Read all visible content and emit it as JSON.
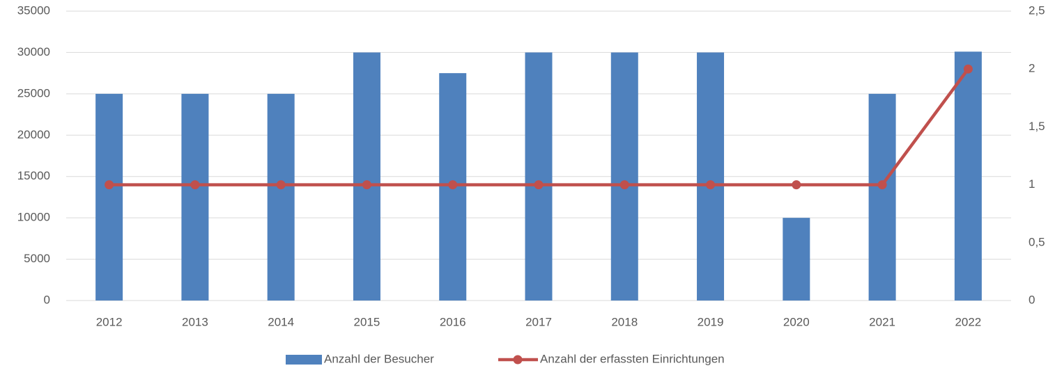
{
  "chart_data": {
    "type": "bar",
    "categories": [
      "2012",
      "2013",
      "2014",
      "2015",
      "2016",
      "2017",
      "2018",
      "2019",
      "2020",
      "2021",
      "2022"
    ],
    "series": [
      {
        "name": "Anzahl der Besucher",
        "type": "bar",
        "color": "#4f81bd",
        "values": [
          25000,
          25000,
          25000,
          30000,
          27500,
          30000,
          30000,
          30000,
          10000,
          25000,
          30100
        ]
      },
      {
        "name": "Anzahl der erfassten Einrichtungen",
        "type": "line",
        "axis": "y2",
        "color": "#c0504d",
        "values": [
          1,
          1,
          1,
          1,
          1,
          1,
          1,
          1,
          1,
          1,
          2
        ]
      }
    ],
    "ylim": [
      0,
      35000
    ],
    "yticks": [
      0,
      5000,
      10000,
      15000,
      20000,
      25000,
      30000,
      35000
    ],
    "y2lim": [
      0,
      2.5
    ],
    "y2ticks": [
      0,
      {
        "value": 0.5,
        "label": "0,5"
      },
      1,
      {
        "value": 1.5,
        "label": "1,5"
      },
      2,
      {
        "value": 2.5,
        "label": "2,5"
      }
    ],
    "grid": true,
    "legend": "bottom"
  }
}
